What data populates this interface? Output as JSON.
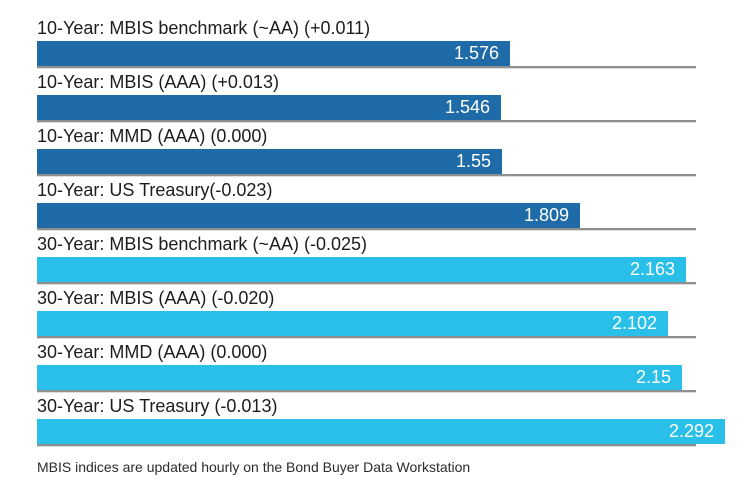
{
  "chart_data": {
    "type": "bar",
    "orientation": "horizontal",
    "title": "",
    "xlabel": "",
    "ylabel": "",
    "xlim": [
      0,
      2.292
    ],
    "grid": false,
    "legend": "none",
    "rows": [
      {
        "label": "10-Year: MBIS benchmark (~AA) (+0.011)",
        "value": 1.576,
        "display": "1.576",
        "group": "10-year"
      },
      {
        "label": "10-Year: MBIS (AAA) (+0.013)",
        "value": 1.546,
        "display": "1.546",
        "group": "10-year"
      },
      {
        "label": "10-Year: MMD (AAA) (0.000)",
        "value": 1.55,
        "display": "1.55",
        "group": "10-year"
      },
      {
        "label": "10-Year: US Treasury(-0.023)",
        "value": 1.809,
        "display": "1.809",
        "group": "10-year"
      },
      {
        "label": "30-Year: MBIS benchmark (~AA) (-0.025)",
        "value": 2.163,
        "display": "2.163",
        "group": "30-year"
      },
      {
        "label": "30-Year: MBIS (AAA) (-0.020)",
        "value": 2.102,
        "display": "2.102",
        "group": "30-year"
      },
      {
        "label": "30-Year: MMD (AAA) (0.000)",
        "value": 2.15,
        "display": "2.15",
        "group": "30-year"
      },
      {
        "label": "30-Year: US Treasury (-0.013)",
        "value": 2.292,
        "display": "2.292",
        "group": "30-year"
      }
    ]
  },
  "colors": {
    "bar_10yr": "#1f6ba8",
    "bar_30yr": "#29bfe8",
    "separator": "#8f8f8f",
    "label_text": "#1d1d1d",
    "value_text": "#ffffff",
    "background": "#ffffff"
  },
  "footer": {
    "note": "MBIS indices are updated hourly on the Bond Buyer Data Workstation"
  }
}
